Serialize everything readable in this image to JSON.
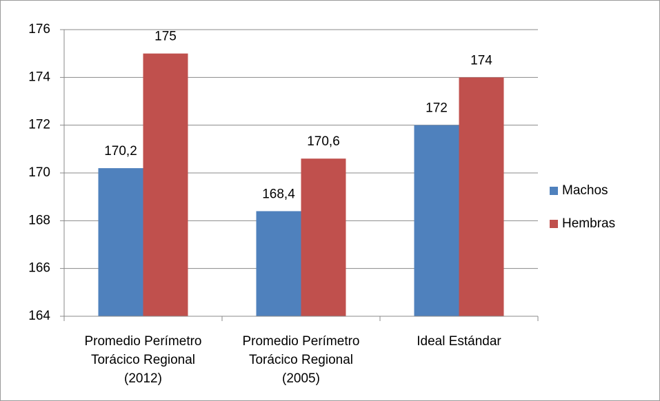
{
  "chart_data": {
    "type": "bar",
    "categories": [
      "Promedio Perímetro Torácico Regional (2012)",
      "Promedio Perímetro Torácico Regional (2005)",
      "Ideal Estándar"
    ],
    "series": [
      {
        "name": "Machos",
        "color": "#4f81bd",
        "values": [
          170.2,
          168.4,
          172
        ],
        "value_labels": [
          "170,2",
          "168,4",
          "172"
        ]
      },
      {
        "name": "Hembras",
        "color": "#c0504d",
        "values": [
          175,
          170.6,
          174
        ],
        "value_labels": [
          "175",
          "170,6",
          "174"
        ]
      }
    ],
    "ylim": [
      164,
      176
    ],
    "yticks": [
      164,
      166,
      168,
      170,
      172,
      174,
      176
    ],
    "grid": true,
    "legend": "right"
  }
}
